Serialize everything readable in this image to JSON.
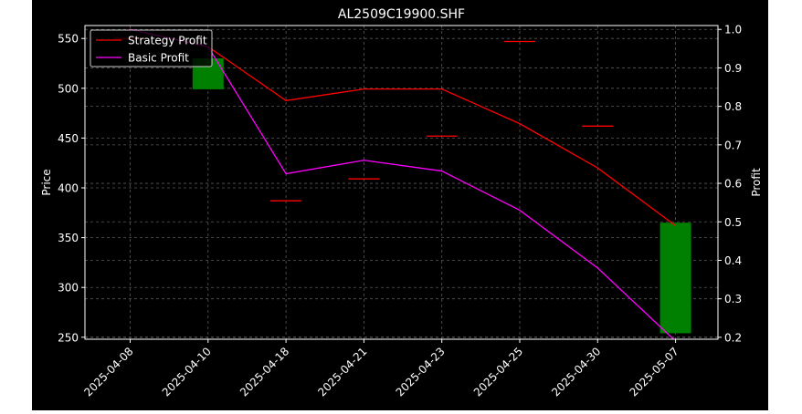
{
  "chart_data": {
    "type": "candlestick",
    "title": "AL2509C19900.SHF",
    "xlabel": "",
    "ylabel_left": "Price",
    "ylabel_right": "Profit",
    "categories": [
      "2025-04-08",
      "2025-04-10",
      "2025-04-18",
      "2025-04-21",
      "2025-04-23",
      "2025-04-25",
      "2025-04-30",
      "2025-05-07"
    ],
    "price_axis": {
      "ylim": [
        248,
        563
      ],
      "ticks": [
        250,
        300,
        350,
        400,
        450,
        500,
        550
      ]
    },
    "profit_axis": {
      "ylim": [
        0.195,
        1.01
      ],
      "ticks": [
        0.2,
        0.3,
        0.4,
        0.5,
        0.6,
        0.7,
        0.8,
        0.9,
        1.0
      ]
    },
    "candles": [
      {
        "date": "2025-04-08",
        "open": 550,
        "close": 550
      },
      {
        "date": "2025-04-10",
        "open": 499,
        "close": 530
      },
      {
        "date": "2025-04-18",
        "open": 387,
        "close": 387
      },
      {
        "date": "2025-04-21",
        "open": 409,
        "close": 409
      },
      {
        "date": "2025-04-23",
        "open": 452,
        "close": 452
      },
      {
        "date": "2025-04-25",
        "open": 547,
        "close": 547
      },
      {
        "date": "2025-04-30",
        "open": 462,
        "close": 462
      },
      {
        "date": "2025-05-07",
        "open": 254,
        "close": 365
      }
    ],
    "series": [
      {
        "name": "Strategy Profit",
        "color": "#ff0000",
        "values": [
          1.0,
          0.955,
          0.815,
          0.845,
          0.845,
          0.755,
          0.64,
          0.49
        ]
      },
      {
        "name": "Basic Profit",
        "color": "#ff00ff",
        "values": [
          1.0,
          0.955,
          0.625,
          0.66,
          0.632,
          0.53,
          0.38,
          0.19
        ]
      }
    ],
    "grid": true,
    "legend": "top-left",
    "colors": {
      "background": "#000000",
      "up": "#008000",
      "flat": "#ff0000",
      "axes": "#ffffff",
      "grid": "#808080"
    }
  }
}
